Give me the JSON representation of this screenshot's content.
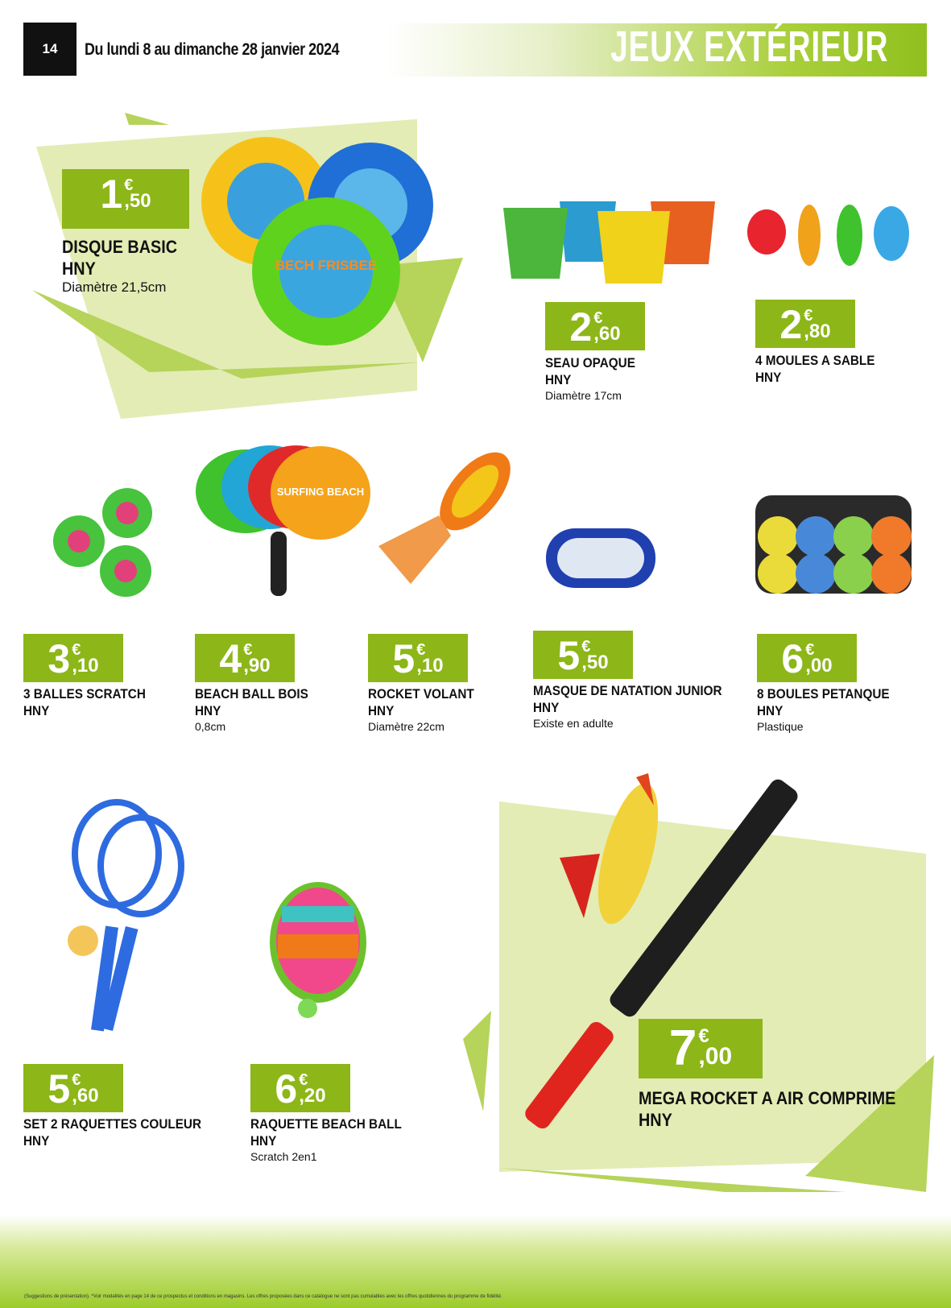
{
  "header": {
    "page_number": "14",
    "date_range": "Du lundi 8 au dimanche 28 janvier 2024",
    "section_title": "JEUX EXTÉRIEUR"
  },
  "currency": "€",
  "products": [
    {
      "name": "DISQUE BASIC",
      "brand": "HNY",
      "detail": "Diamètre 21,5cm",
      "price_int": "1",
      "price_dec": ",50"
    },
    {
      "name": "SEAU OPAQUE",
      "brand": "HNY",
      "detail": "Diamètre 17cm",
      "price_int": "2",
      "price_dec": ",60"
    },
    {
      "name": "4 MOULES A SABLE",
      "brand": "HNY",
      "detail": "",
      "price_int": "2",
      "price_dec": ",80"
    },
    {
      "name": "3 BALLES SCRATCH",
      "brand": "HNY",
      "detail": "",
      "price_int": "3",
      "price_dec": ",10"
    },
    {
      "name": "BEACH BALL BOIS",
      "brand": "HNY",
      "detail": "0,8cm",
      "price_int": "4",
      "price_dec": ",90"
    },
    {
      "name": "ROCKET VOLANT",
      "brand": "HNY",
      "detail": "Diamètre 22cm",
      "price_int": "5",
      "price_dec": ",10"
    },
    {
      "name": "MASQUE DE NATATION JUNIOR",
      "brand": "HNY",
      "detail": "Existe en adulte",
      "price_int": "5",
      "price_dec": ",50"
    },
    {
      "name": "8 BOULES PETANQUE",
      "brand": "HNY",
      "detail": "Plastique",
      "price_int": "6",
      "price_dec": ",00"
    },
    {
      "name": "SET 2 RAQUETTES COULEUR",
      "brand": "HNY",
      "detail": "",
      "price_int": "5",
      "price_dec": ",60"
    },
    {
      "name": "RAQUETTE BEACH BALL",
      "brand": "HNY",
      "detail": "Scratch 2en1",
      "price_int": "6",
      "price_dec": ",20"
    },
    {
      "name": "MEGA ROCKET A AIR COMPRIME",
      "brand": "HNY",
      "detail": "",
      "price_int": "7",
      "price_dec": ",00"
    }
  ],
  "product_labels": {
    "frisbee_print": "BECH FRISBEE",
    "racket_print": "SURFING BEACH"
  },
  "footer": {
    "legal": "(Suggestions de présentation). *Voir modalités en page 14 de ce prospectus et conditions en magasins. Les offres proposées dans ce catalogue ne sont pas cumulables avec les offres quotidiennes du programme de fidélité."
  },
  "colors": {
    "accent": "#8db618",
    "light_panel": "#e3ecb4",
    "dark": "#111111"
  }
}
